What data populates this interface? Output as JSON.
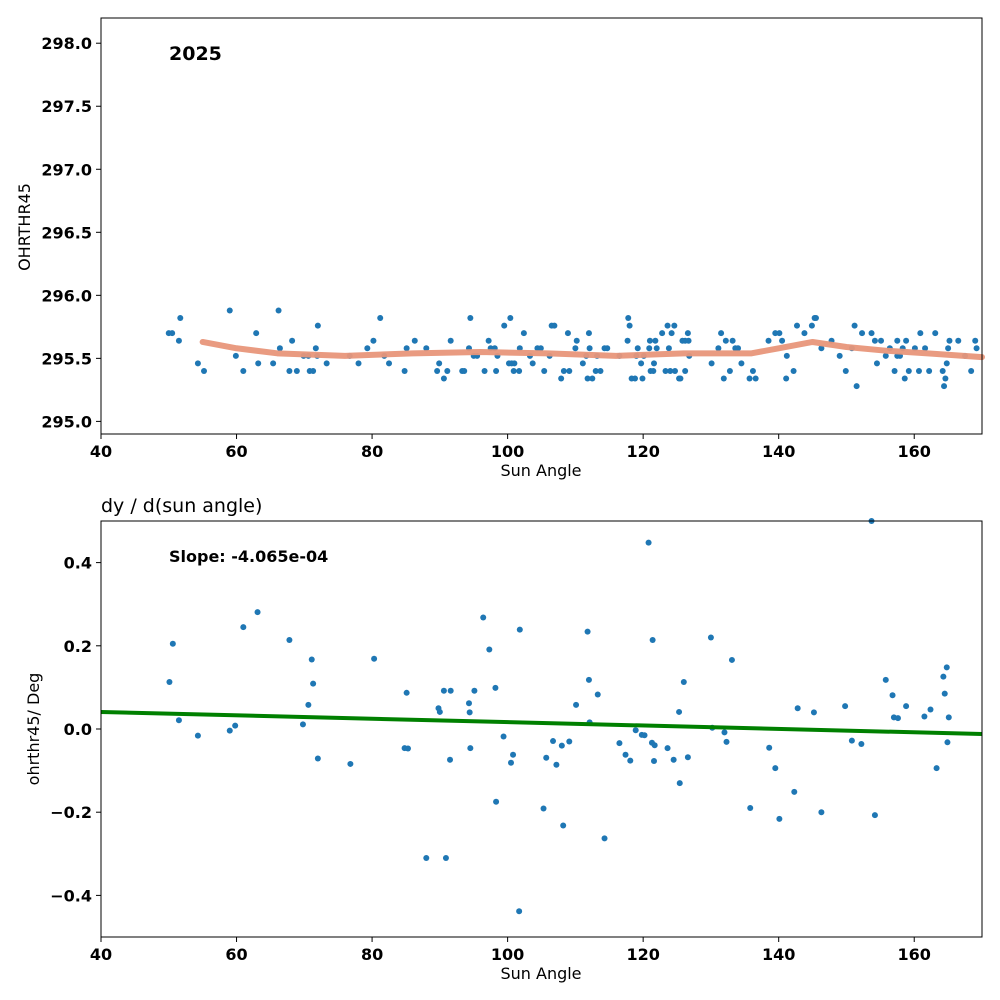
{
  "chart_data": [
    {
      "type": "scatter",
      "annotation": "2025",
      "xlabel": "Sun Angle",
      "ylabel": "OHRTHR45",
      "xlim": [
        40,
        170
      ],
      "ylim": [
        294.9,
        298.2
      ],
      "xticks": [
        40,
        60,
        80,
        100,
        120,
        140,
        160
      ],
      "yticks": [
        295.0,
        295.5,
        296.0,
        296.5,
        297.0,
        297.5,
        298.0
      ],
      "ytick_labels": [
        "295.0",
        "295.5",
        "296.0",
        "296.5",
        "297.0",
        "297.5",
        "298.0"
      ],
      "grid": false,
      "colors": {
        "points": "#1f77b4",
        "trend": "#e8967a"
      },
      "points": [
        [
          50,
          295.7
        ],
        [
          50.5,
          295.7
        ],
        [
          51.5,
          295.64
        ],
        [
          51.7,
          295.82
        ],
        [
          54.3,
          295.46
        ],
        [
          55.2,
          295.4
        ],
        [
          59,
          295.88
        ],
        [
          59.9,
          295.52
        ],
        [
          61,
          295.4
        ],
        [
          62.9,
          295.7
        ],
        [
          63.2,
          295.46
        ],
        [
          65.4,
          295.46
        ],
        [
          66.2,
          295.88
        ],
        [
          66.4,
          295.58
        ],
        [
          67.8,
          295.4
        ],
        [
          68.2,
          295.64
        ],
        [
          68.9,
          295.4
        ],
        [
          69.9,
          295.52
        ],
        [
          70.6,
          295.52
        ],
        [
          70.8,
          295.4
        ],
        [
          71.3,
          295.4
        ],
        [
          71.7,
          295.58
        ],
        [
          71.9,
          295.52
        ],
        [
          72,
          295.76
        ],
        [
          73.3,
          295.46
        ],
        [
          76.7,
          295.52
        ],
        [
          78,
          295.46
        ],
        [
          79.3,
          295.58
        ],
        [
          80.2,
          295.64
        ],
        [
          81.2,
          295.82
        ],
        [
          81.8,
          295.52
        ],
        [
          82.5,
          295.46
        ],
        [
          84.8,
          295.4
        ],
        [
          85.1,
          295.58
        ],
        [
          86.3,
          295.64
        ],
        [
          88,
          295.58
        ],
        [
          89.6,
          295.4
        ],
        [
          89.9,
          295.46
        ],
        [
          90.6,
          295.34
        ],
        [
          91.1,
          295.4
        ],
        [
          91.6,
          295.64
        ],
        [
          93.3,
          295.4
        ],
        [
          93.6,
          295.4
        ],
        [
          94.3,
          295.58
        ],
        [
          94.5,
          295.82
        ],
        [
          95,
          295.52
        ],
        [
          95.5,
          295.52
        ],
        [
          96.6,
          295.4
        ],
        [
          97.2,
          295.64
        ],
        [
          97.5,
          295.58
        ],
        [
          98.1,
          295.58
        ],
        [
          98.3,
          295.4
        ],
        [
          98.5,
          295.52
        ],
        [
          99.5,
          295.76
        ],
        [
          100.2,
          295.46
        ],
        [
          100.4,
          295.82
        ],
        [
          100.6,
          295.46
        ],
        [
          100.9,
          295.4
        ],
        [
          101,
          295.46
        ],
        [
          101.7,
          295.4
        ],
        [
          101.8,
          295.58
        ],
        [
          102.4,
          295.7
        ],
        [
          103.3,
          295.52
        ],
        [
          103.7,
          295.46
        ],
        [
          104.4,
          295.58
        ],
        [
          104.9,
          295.58
        ],
        [
          105.4,
          295.4
        ],
        [
          106.2,
          295.52
        ],
        [
          106.5,
          295.76
        ],
        [
          106.9,
          295.76
        ],
        [
          107.9,
          295.34
        ],
        [
          108.3,
          295.4
        ],
        [
          108.9,
          295.7
        ],
        [
          109.1,
          295.4
        ],
        [
          110,
          295.58
        ],
        [
          110.2,
          295.64
        ],
        [
          111.1,
          295.46
        ],
        [
          111.6,
          295.52
        ],
        [
          111.8,
          295.34
        ],
        [
          112,
          295.7
        ],
        [
          112.1,
          295.58
        ],
        [
          112.5,
          295.34
        ],
        [
          113,
          295.4
        ],
        [
          113.2,
          295.52
        ],
        [
          113.7,
          295.4
        ],
        [
          114.3,
          295.58
        ],
        [
          114.7,
          295.58
        ],
        [
          116.5,
          295.52
        ],
        [
          117.7,
          295.64
        ],
        [
          117.8,
          295.82
        ],
        [
          118,
          295.76
        ],
        [
          118.3,
          295.34
        ],
        [
          118.8,
          295.34
        ],
        [
          119,
          295.52
        ],
        [
          119.2,
          295.58
        ],
        [
          119.7,
          295.46
        ],
        [
          119.9,
          295.34
        ],
        [
          120.1,
          295.52
        ],
        [
          120.9,
          295.58
        ],
        [
          121,
          295.64
        ],
        [
          121.1,
          295.4
        ],
        [
          121.5,
          295.4
        ],
        [
          121.6,
          295.46
        ],
        [
          121.8,
          295.64
        ],
        [
          122,
          295.58
        ],
        [
          122.8,
          295.7
        ],
        [
          123.3,
          295.4
        ],
        [
          123.6,
          295.76
        ],
        [
          123.8,
          295.58
        ],
        [
          124,
          295.4
        ],
        [
          124.2,
          295.7
        ],
        [
          124.6,
          295.76
        ],
        [
          124.7,
          295.4
        ],
        [
          125.3,
          295.34
        ],
        [
          125.5,
          295.34
        ],
        [
          125.8,
          295.64
        ],
        [
          126.2,
          295.64
        ],
        [
          126.2,
          295.4
        ],
        [
          126.6,
          295.7
        ],
        [
          126.7,
          295.64
        ],
        [
          126.8,
          295.52
        ],
        [
          130.1,
          295.46
        ],
        [
          131.1,
          295.58
        ],
        [
          131.5,
          295.7
        ],
        [
          131.9,
          295.34
        ],
        [
          132.2,
          295.64
        ],
        [
          132.8,
          295.4
        ],
        [
          133.2,
          295.64
        ],
        [
          133.6,
          295.58
        ],
        [
          134,
          295.58
        ],
        [
          134.5,
          295.46
        ],
        [
          135.7,
          295.34
        ],
        [
          136.2,
          295.4
        ],
        [
          136.6,
          295.34
        ],
        [
          138.5,
          295.64
        ],
        [
          139.5,
          295.7
        ],
        [
          140.1,
          295.7
        ],
        [
          140.5,
          295.64
        ],
        [
          141.1,
          295.34
        ],
        [
          141.2,
          295.52
        ],
        [
          142.2,
          295.4
        ],
        [
          142.7,
          295.76
        ],
        [
          143.8,
          295.7
        ],
        [
          144.9,
          295.76
        ],
        [
          145.3,
          295.82
        ],
        [
          145.5,
          295.82
        ],
        [
          146.3,
          295.58
        ],
        [
          147.8,
          295.64
        ],
        [
          149,
          295.52
        ],
        [
          149.9,
          295.4
        ],
        [
          150.8,
          295.58
        ],
        [
          151.2,
          295.76
        ],
        [
          151.5,
          295.28
        ],
        [
          152.3,
          295.7
        ],
        [
          153.7,
          295.7
        ],
        [
          154.2,
          295.64
        ],
        [
          154.5,
          295.46
        ],
        [
          155.1,
          295.64
        ],
        [
          155.8,
          295.52
        ],
        [
          156.4,
          295.58
        ],
        [
          157.1,
          295.4
        ],
        [
          157.5,
          295.64
        ],
        [
          157.5,
          295.52
        ],
        [
          157.9,
          295.52
        ],
        [
          158.3,
          295.58
        ],
        [
          158.6,
          295.34
        ],
        [
          158.8,
          295.64
        ],
        [
          159.2,
          295.4
        ],
        [
          160.1,
          295.58
        ],
        [
          160.7,
          295.4
        ],
        [
          160.9,
          295.7
        ],
        [
          161.6,
          295.58
        ],
        [
          162.2,
          295.4
        ],
        [
          163.1,
          295.7
        ],
        [
          164.2,
          295.4
        ],
        [
          164.4,
          295.28
        ],
        [
          164.6,
          295.34
        ],
        [
          164.8,
          295.46
        ],
        [
          165,
          295.58
        ],
        [
          165.2,
          295.64
        ],
        [
          166.5,
          295.64
        ],
        [
          167.5,
          295.52
        ],
        [
          168.4,
          295.4
        ],
        [
          169,
          295.64
        ],
        [
          169.2,
          295.58
        ]
      ],
      "trend": [
        [
          55,
          295.63
        ],
        [
          60,
          295.58
        ],
        [
          66,
          295.54
        ],
        [
          76,
          295.52
        ],
        [
          86,
          295.54
        ],
        [
          96,
          295.55
        ],
        [
          106,
          295.54
        ],
        [
          116,
          295.52
        ],
        [
          126,
          295.54
        ],
        [
          136,
          295.54
        ],
        [
          140,
          295.58
        ],
        [
          145,
          295.63
        ],
        [
          150,
          295.59
        ],
        [
          156,
          295.56
        ],
        [
          162,
          295.54
        ],
        [
          170,
          295.51
        ]
      ]
    },
    {
      "type": "scatter",
      "title": "dy / d(sun angle)",
      "annotation": "Slope: -4.065e-04",
      "xlabel": "Sun Angle",
      "ylabel": "ohrthr45/ Deg",
      "xlim": [
        40,
        170
      ],
      "ylim": [
        -0.5,
        0.5
      ],
      "xticks": [
        40,
        60,
        80,
        100,
        120,
        140,
        160
      ],
      "yticks": [
        -0.4,
        -0.2,
        0.0,
        0.2,
        0.4
      ],
      "ytick_labels": [
        "−0.4",
        "−0.2",
        "0.0",
        "0.2",
        "0.4"
      ],
      "grid": false,
      "colors": {
        "points": "#1f77b4",
        "fit": "#008000"
      },
      "points": [
        [
          50.1,
          0.113
        ],
        [
          50.6,
          0.205
        ],
        [
          51.5,
          0.021
        ],
        [
          54.3,
          -0.016
        ],
        [
          59,
          -0.004
        ],
        [
          59.8,
          0.008
        ],
        [
          61,
          0.245
        ],
        [
          63.1,
          0.281
        ],
        [
          67.8,
          0.214
        ],
        [
          69.8,
          0.011
        ],
        [
          70.6,
          0.058
        ],
        [
          71.1,
          0.167
        ],
        [
          71.3,
          0.109
        ],
        [
          72,
          -0.071
        ],
        [
          76.8,
          -0.084
        ],
        [
          80.3,
          0.169
        ],
        [
          84.8,
          -0.046
        ],
        [
          85.1,
          0.087
        ],
        [
          85.3,
          -0.047
        ],
        [
          88,
          -0.31
        ],
        [
          89.8,
          0.05
        ],
        [
          90,
          0.041
        ],
        [
          90.6,
          0.092
        ],
        [
          90.9,
          -0.31
        ],
        [
          91.5,
          -0.074
        ],
        [
          91.6,
          0.092
        ],
        [
          94.3,
          0.062
        ],
        [
          94.4,
          0.04
        ],
        [
          94.5,
          -0.046
        ],
        [
          95.1,
          0.092
        ],
        [
          96.4,
          0.268
        ],
        [
          97.3,
          0.191
        ],
        [
          98.2,
          0.099
        ],
        [
          98.3,
          -0.175
        ],
        [
          99.4,
          -0.018
        ],
        [
          100.5,
          -0.081
        ],
        [
          100.8,
          -0.062
        ],
        [
          101.7,
          -0.438
        ],
        [
          101.8,
          0.239
        ],
        [
          105.3,
          -0.191
        ],
        [
          105.7,
          -0.069
        ],
        [
          106.7,
          -0.029
        ],
        [
          107.2,
          -0.086
        ],
        [
          108,
          -0.04
        ],
        [
          108.2,
          -0.232
        ],
        [
          109.1,
          -0.03
        ],
        [
          110.1,
          0.058
        ],
        [
          111.8,
          0.234
        ],
        [
          112,
          0.118
        ],
        [
          112.1,
          0.016
        ],
        [
          113.3,
          0.083
        ],
        [
          114.3,
          -0.263
        ],
        [
          116.5,
          -0.034
        ],
        [
          117.4,
          -0.062
        ],
        [
          118.1,
          -0.076
        ],
        [
          118.9,
          -0.003
        ],
        [
          119.8,
          -0.014
        ],
        [
          120.2,
          -0.015
        ],
        [
          120.8,
          0.448
        ],
        [
          121.3,
          -0.033
        ],
        [
          121.4,
          0.214
        ],
        [
          121.6,
          -0.077
        ],
        [
          121.7,
          -0.039
        ],
        [
          123.6,
          -0.046
        ],
        [
          124.5,
          -0.074
        ],
        [
          125.3,
          0.041
        ],
        [
          125.4,
          -0.13
        ],
        [
          126,
          0.113
        ],
        [
          126.6,
          -0.068
        ],
        [
          130,
          0.22
        ],
        [
          130.2,
          0.003
        ],
        [
          132,
          -0.008
        ],
        [
          132.3,
          -0.031
        ],
        [
          133.1,
          0.166
        ],
        [
          135.8,
          -0.19
        ],
        [
          138.6,
          -0.045
        ],
        [
          139.5,
          -0.094
        ],
        [
          140.1,
          -0.216
        ],
        [
          142.3,
          -0.151
        ],
        [
          142.8,
          0.05
        ],
        [
          145.2,
          0.04
        ],
        [
          146.3,
          -0.2
        ],
        [
          149.8,
          0.055
        ],
        [
          150.8,
          -0.028
        ],
        [
          152.2,
          -0.036
        ],
        [
          153.7,
          0.5
        ],
        [
          154.2,
          -0.207
        ],
        [
          155.8,
          0.118
        ],
        [
          156.8,
          0.081
        ],
        [
          157,
          0.028
        ],
        [
          157.6,
          0.026
        ],
        [
          158.8,
          0.055
        ],
        [
          161.5,
          0.03
        ],
        [
          162.4,
          0.047
        ],
        [
          163.3,
          -0.094
        ],
        [
          164.3,
          0.126
        ],
        [
          164.5,
          0.085
        ],
        [
          164.8,
          0.148
        ],
        [
          164.9,
          -0.032
        ],
        [
          165.1,
          0.028
        ]
      ],
      "fit": [
        [
          40,
          0.041
        ],
        [
          170,
          -0.012
        ]
      ]
    }
  ]
}
